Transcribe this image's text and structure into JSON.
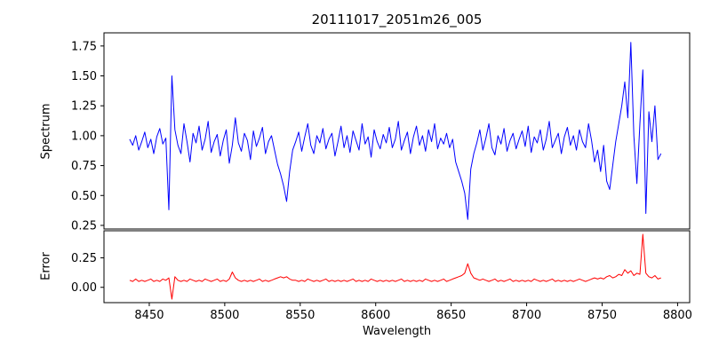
{
  "chart_data": {
    "type": "line",
    "title": "20111017_2051m26_005",
    "xlabel": "Wavelength",
    "xlim": [
      8420,
      8808
    ],
    "x_start": 8437,
    "x_step": 2,
    "x_ticks": [
      8450,
      8500,
      8550,
      8600,
      8650,
      8700,
      8750,
      8800
    ],
    "x_tick_labels": [
      "8450",
      "8500",
      "8550",
      "8600",
      "8650",
      "8700",
      "8750",
      "8800"
    ],
    "grid": false,
    "legend": "none",
    "subplots": [
      {
        "name": "spectrum",
        "ylabel": "Spectrum",
        "color": "#0000ff",
        "ylim": [
          0.22,
          1.86
        ],
        "y_ticks": [
          0.25,
          0.5,
          0.75,
          1.0,
          1.25,
          1.5,
          1.75
        ],
        "y_tick_labels": [
          "0.25",
          "0.50",
          "0.75",
          "1.00",
          "1.25",
          "1.50",
          "1.75"
        ],
        "values": [
          0.97,
          0.92,
          1.0,
          0.88,
          0.95,
          1.03,
          0.9,
          0.97,
          0.85,
          0.99,
          1.06,
          0.93,
          0.98,
          0.38,
          1.5,
          1.05,
          0.92,
          0.85,
          1.1,
          0.95,
          0.78,
          1.02,
          0.94,
          1.08,
          0.88,
          0.97,
          1.12,
          0.86,
          0.95,
          1.01,
          0.83,
          0.96,
          1.05,
          0.77,
          0.92,
          1.15,
          0.94,
          0.87,
          1.02,
          0.96,
          0.8,
          1.04,
          0.91,
          0.98,
          1.07,
          0.85,
          0.95,
          1.0,
          0.88,
          0.76,
          0.68,
          0.58,
          0.45,
          0.7,
          0.88,
          0.95,
          1.03,
          0.87,
          0.99,
          1.1,
          0.92,
          0.85,
          1.0,
          0.94,
          1.06,
          0.89,
          0.97,
          1.02,
          0.83,
          0.95,
          1.08,
          0.9,
          1.0,
          0.86,
          1.04,
          0.96,
          0.88,
          1.1,
          0.93,
          0.99,
          0.82,
          1.05,
          0.95,
          0.89,
          1.01,
          0.94,
          1.07,
          0.9,
          0.97,
          1.12,
          0.88,
          0.96,
          1.03,
          0.85,
          0.99,
          1.08,
          0.92,
          1.0,
          0.87,
          1.05,
          0.95,
          1.1,
          0.89,
          0.98,
          0.93,
          1.02,
          0.9,
          0.97,
          0.78,
          0.7,
          0.62,
          0.52,
          0.3,
          0.72,
          0.85,
          0.94,
          1.05,
          0.88,
          0.98,
          1.1,
          0.9,
          0.84,
          1.0,
          0.93,
          1.06,
          0.87,
          0.96,
          1.02,
          0.89,
          0.97,
          1.04,
          0.91,
          1.08,
          0.86,
          0.99,
          0.94,
          1.05,
          0.88,
          0.97,
          1.12,
          0.9,
          0.96,
          1.02,
          0.85,
          0.99,
          1.07,
          0.92,
          1.0,
          0.88,
          1.05,
          0.95,
          0.9,
          1.1,
          0.96,
          0.78,
          0.88,
          0.7,
          0.92,
          0.62,
          0.55,
          0.75,
          0.95,
          1.1,
          1.25,
          1.45,
          1.15,
          1.78,
          1.0,
          0.6,
          1.1,
          1.55,
          0.35,
          1.2,
          0.95,
          1.25,
          0.8,
          0.85
        ]
      },
      {
        "name": "error",
        "ylabel": "Error",
        "color": "#ff0000",
        "ylim": [
          -0.13,
          0.48
        ],
        "y_ticks": [
          0.0,
          0.25
        ],
        "y_tick_labels": [
          "0.00",
          "0.25"
        ],
        "values": [
          0.06,
          0.05,
          0.07,
          0.05,
          0.06,
          0.05,
          0.06,
          0.07,
          0.05,
          0.06,
          0.05,
          0.07,
          0.06,
          0.08,
          -0.1,
          0.09,
          0.06,
          0.05,
          0.06,
          0.05,
          0.07,
          0.06,
          0.05,
          0.06,
          0.05,
          0.07,
          0.06,
          0.05,
          0.06,
          0.07,
          0.05,
          0.06,
          0.05,
          0.07,
          0.13,
          0.08,
          0.06,
          0.05,
          0.06,
          0.05,
          0.06,
          0.05,
          0.06,
          0.07,
          0.05,
          0.06,
          0.05,
          0.06,
          0.07,
          0.08,
          0.09,
          0.08,
          0.09,
          0.07,
          0.06,
          0.06,
          0.05,
          0.06,
          0.05,
          0.07,
          0.06,
          0.05,
          0.06,
          0.05,
          0.06,
          0.07,
          0.05,
          0.06,
          0.05,
          0.06,
          0.05,
          0.06,
          0.05,
          0.06,
          0.07,
          0.05,
          0.06,
          0.05,
          0.06,
          0.05,
          0.07,
          0.06,
          0.05,
          0.06,
          0.05,
          0.06,
          0.05,
          0.06,
          0.05,
          0.06,
          0.07,
          0.05,
          0.06,
          0.05,
          0.06,
          0.05,
          0.06,
          0.05,
          0.07,
          0.06,
          0.05,
          0.06,
          0.05,
          0.06,
          0.07,
          0.05,
          0.06,
          0.07,
          0.08,
          0.09,
          0.1,
          0.12,
          0.2,
          0.12,
          0.08,
          0.07,
          0.06,
          0.07,
          0.06,
          0.05,
          0.06,
          0.07,
          0.05,
          0.06,
          0.05,
          0.06,
          0.07,
          0.05,
          0.06,
          0.05,
          0.06,
          0.05,
          0.06,
          0.05,
          0.07,
          0.06,
          0.05,
          0.06,
          0.05,
          0.06,
          0.07,
          0.05,
          0.06,
          0.05,
          0.06,
          0.05,
          0.06,
          0.05,
          0.06,
          0.07,
          0.06,
          0.05,
          0.06,
          0.07,
          0.08,
          0.07,
          0.08,
          0.07,
          0.09,
          0.1,
          0.08,
          0.09,
          0.11,
          0.1,
          0.15,
          0.12,
          0.14,
          0.1,
          0.12,
          0.11,
          0.45,
          0.12,
          0.09,
          0.08,
          0.1,
          0.07,
          0.08
        ]
      }
    ]
  }
}
